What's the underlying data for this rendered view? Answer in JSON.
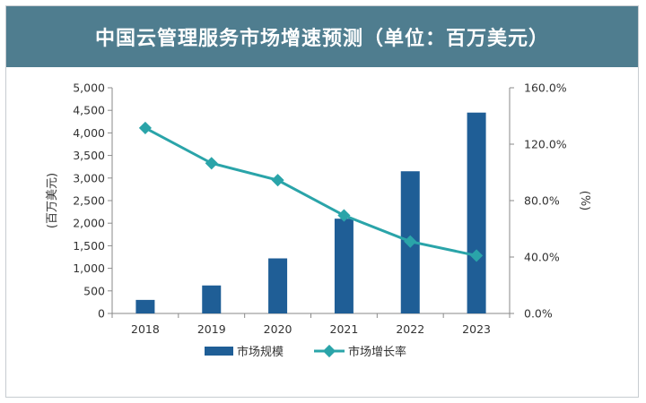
{
  "title": "中国云管理服务市场增速预测（单位：百万美元）",
  "chart_data": {
    "type": "bar",
    "categories": [
      "2018",
      "2019",
      "2020",
      "2021",
      "2022",
      "2023"
    ],
    "series": [
      {
        "name": "市场规模",
        "type": "bar",
        "axis": "left",
        "values": [
          300,
          620,
          1220,
          2100,
          3150,
          4450
        ]
      },
      {
        "name": "市场增长率",
        "type": "line",
        "axis": "right",
        "values": [
          131.5,
          106.5,
          94.5,
          69.5,
          51.0,
          41.0
        ]
      }
    ],
    "ylabel": "(百万美元)",
    "y2label": "(%)",
    "ylim": [
      0,
      5000
    ],
    "y2lim": [
      0,
      160
    ],
    "yticks": [
      "0",
      "500",
      "1,000",
      "1,500",
      "2,000",
      "2,500",
      "3,000",
      "3,500",
      "4,000",
      "4,500",
      "5,000"
    ],
    "y2ticks": [
      "0.0%",
      "40.0%",
      "80.0%",
      "120.0%",
      "160.0%"
    ],
    "grid": false,
    "legend_position": "bottom",
    "colors": {
      "bar": "#1f5e96",
      "line": "#2aa4a9",
      "axis": "#8a8a8a"
    }
  }
}
